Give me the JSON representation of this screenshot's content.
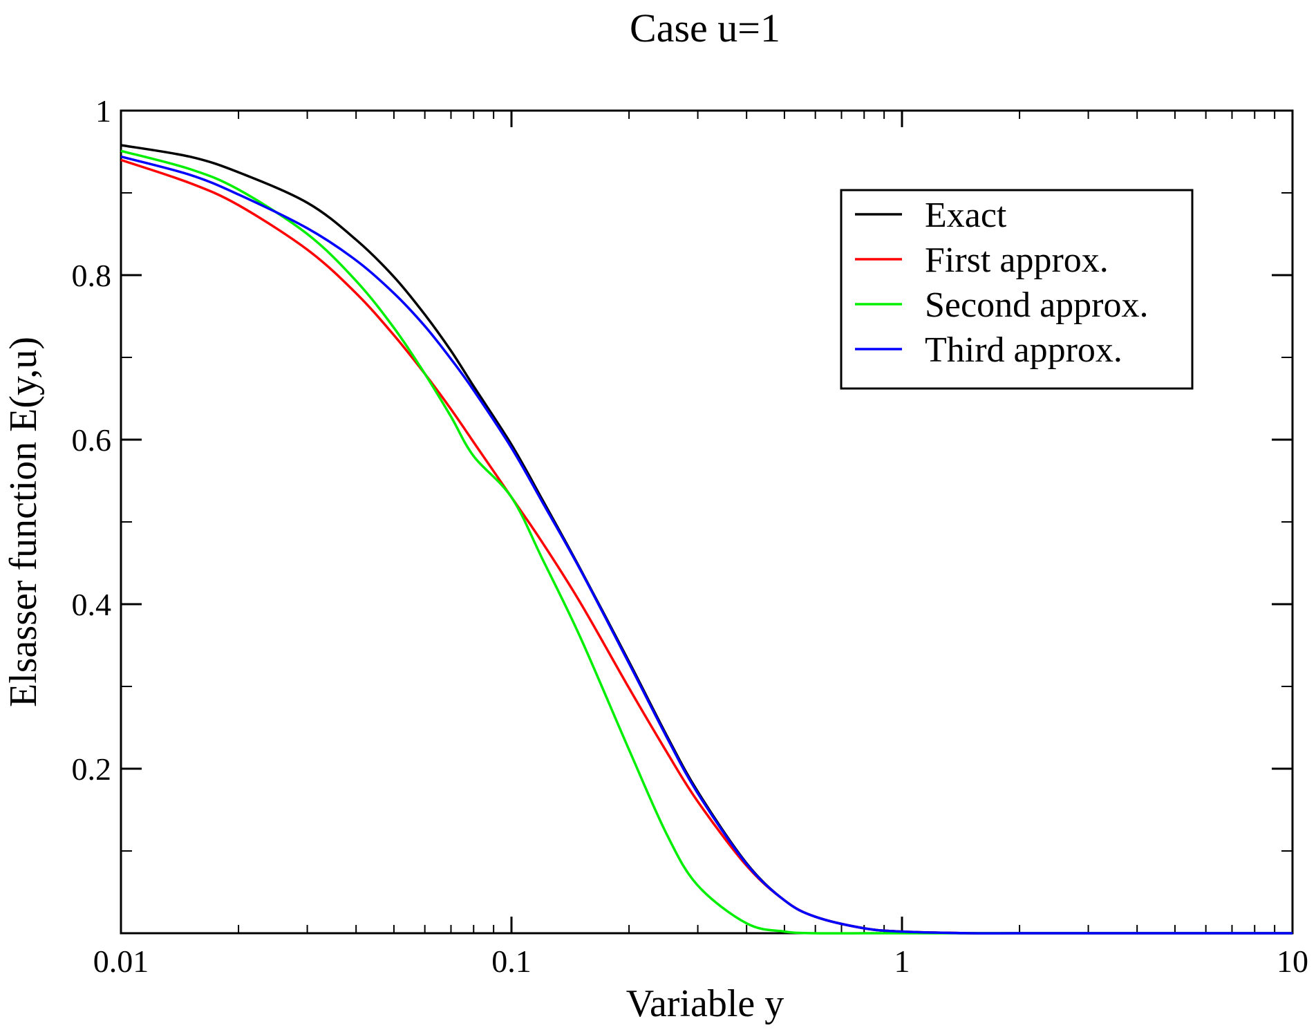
{
  "chart_data": {
    "type": "line",
    "title": "Case u=1",
    "xlabel": "Variable y",
    "ylabel": "Elsasser function E(y,u)",
    "xscale": "log",
    "xlim": [
      0.01,
      10
    ],
    "ylim": [
      0,
      1
    ],
    "x_ticks": [
      {
        "value": 0.01,
        "label": "0.01"
      },
      {
        "value": 0.1,
        "label": "0.1"
      },
      {
        "value": 1,
        "label": "1"
      },
      {
        "value": 10,
        "label": "10"
      }
    ],
    "y_ticks": [
      {
        "value": 0.2,
        "label": "0.2"
      },
      {
        "value": 0.4,
        "label": "0.4"
      },
      {
        "value": 0.6,
        "label": "0.6"
      },
      {
        "value": 0.8,
        "label": "0.8"
      },
      {
        "value": 1,
        "label": "1"
      }
    ],
    "y_minor_ticks": [
      0.1,
      0.3,
      0.5,
      0.7,
      0.9
    ],
    "grid": false,
    "legend_position": "top-right",
    "series": [
      {
        "name": "Exact",
        "color": "#000000",
        "x": [
          0.01,
          0.015,
          0.02,
          0.03,
          0.04,
          0.05,
          0.06,
          0.07,
          0.08,
          0.1,
          0.12,
          0.15,
          0.2,
          0.25,
          0.3,
          0.4,
          0.5,
          0.6,
          0.8,
          1,
          1.5,
          2,
          5,
          10
        ],
        "y": [
          0.958,
          0.944,
          0.925,
          0.888,
          0.843,
          0.798,
          0.752,
          0.708,
          0.665,
          0.594,
          0.527,
          0.443,
          0.33,
          0.24,
          0.172,
          0.085,
          0.04,
          0.02,
          0.006,
          0.002,
          0.0,
          0.0,
          0.0,
          0.0
        ]
      },
      {
        "name": "First approx.",
        "color": "#ff0000",
        "x": [
          0.01,
          0.015,
          0.02,
          0.03,
          0.04,
          0.05,
          0.06,
          0.07,
          0.08,
          0.1,
          0.12,
          0.15,
          0.2,
          0.25,
          0.3,
          0.4,
          0.5,
          0.6,
          0.8,
          1,
          1.5,
          2,
          5,
          10
        ],
        "y": [
          0.94,
          0.912,
          0.885,
          0.831,
          0.778,
          0.727,
          0.68,
          0.637,
          0.597,
          0.53,
          0.475,
          0.402,
          0.298,
          0.22,
          0.16,
          0.082,
          0.04,
          0.02,
          0.006,
          0.002,
          0.0,
          0.0,
          0.0,
          0.0
        ]
      },
      {
        "name": "Second approx.",
        "color": "#00ee00",
        "x": [
          0.01,
          0.015,
          0.02,
          0.03,
          0.04,
          0.05,
          0.06,
          0.07,
          0.08,
          0.1,
          0.12,
          0.15,
          0.2,
          0.25,
          0.3,
          0.4,
          0.5,
          0.6,
          0.8,
          1,
          1.5,
          2,
          5,
          10
        ],
        "y": [
          0.951,
          0.929,
          0.904,
          0.85,
          0.793,
          0.736,
          0.68,
          0.628,
          0.58,
          0.53,
          0.455,
          0.36,
          0.223,
          0.12,
          0.058,
          0.012,
          0.002,
          0.0,
          0.0,
          0.0,
          0.0,
          0.0,
          0.0,
          0.0
        ]
      },
      {
        "name": "Third approx.",
        "color": "#0000ff",
        "x": [
          0.01,
          0.015,
          0.02,
          0.03,
          0.04,
          0.05,
          0.06,
          0.07,
          0.08,
          0.1,
          0.12,
          0.15,
          0.2,
          0.25,
          0.3,
          0.4,
          0.5,
          0.6,
          0.8,
          1,
          1.5,
          2,
          5,
          10
        ],
        "y": [
          0.944,
          0.922,
          0.898,
          0.857,
          0.818,
          0.778,
          0.738,
          0.698,
          0.66,
          0.59,
          0.524,
          0.442,
          0.328,
          0.238,
          0.17,
          0.084,
          0.04,
          0.02,
          0.006,
          0.002,
          0.0,
          0.0,
          0.0,
          0.0
        ]
      }
    ]
  }
}
